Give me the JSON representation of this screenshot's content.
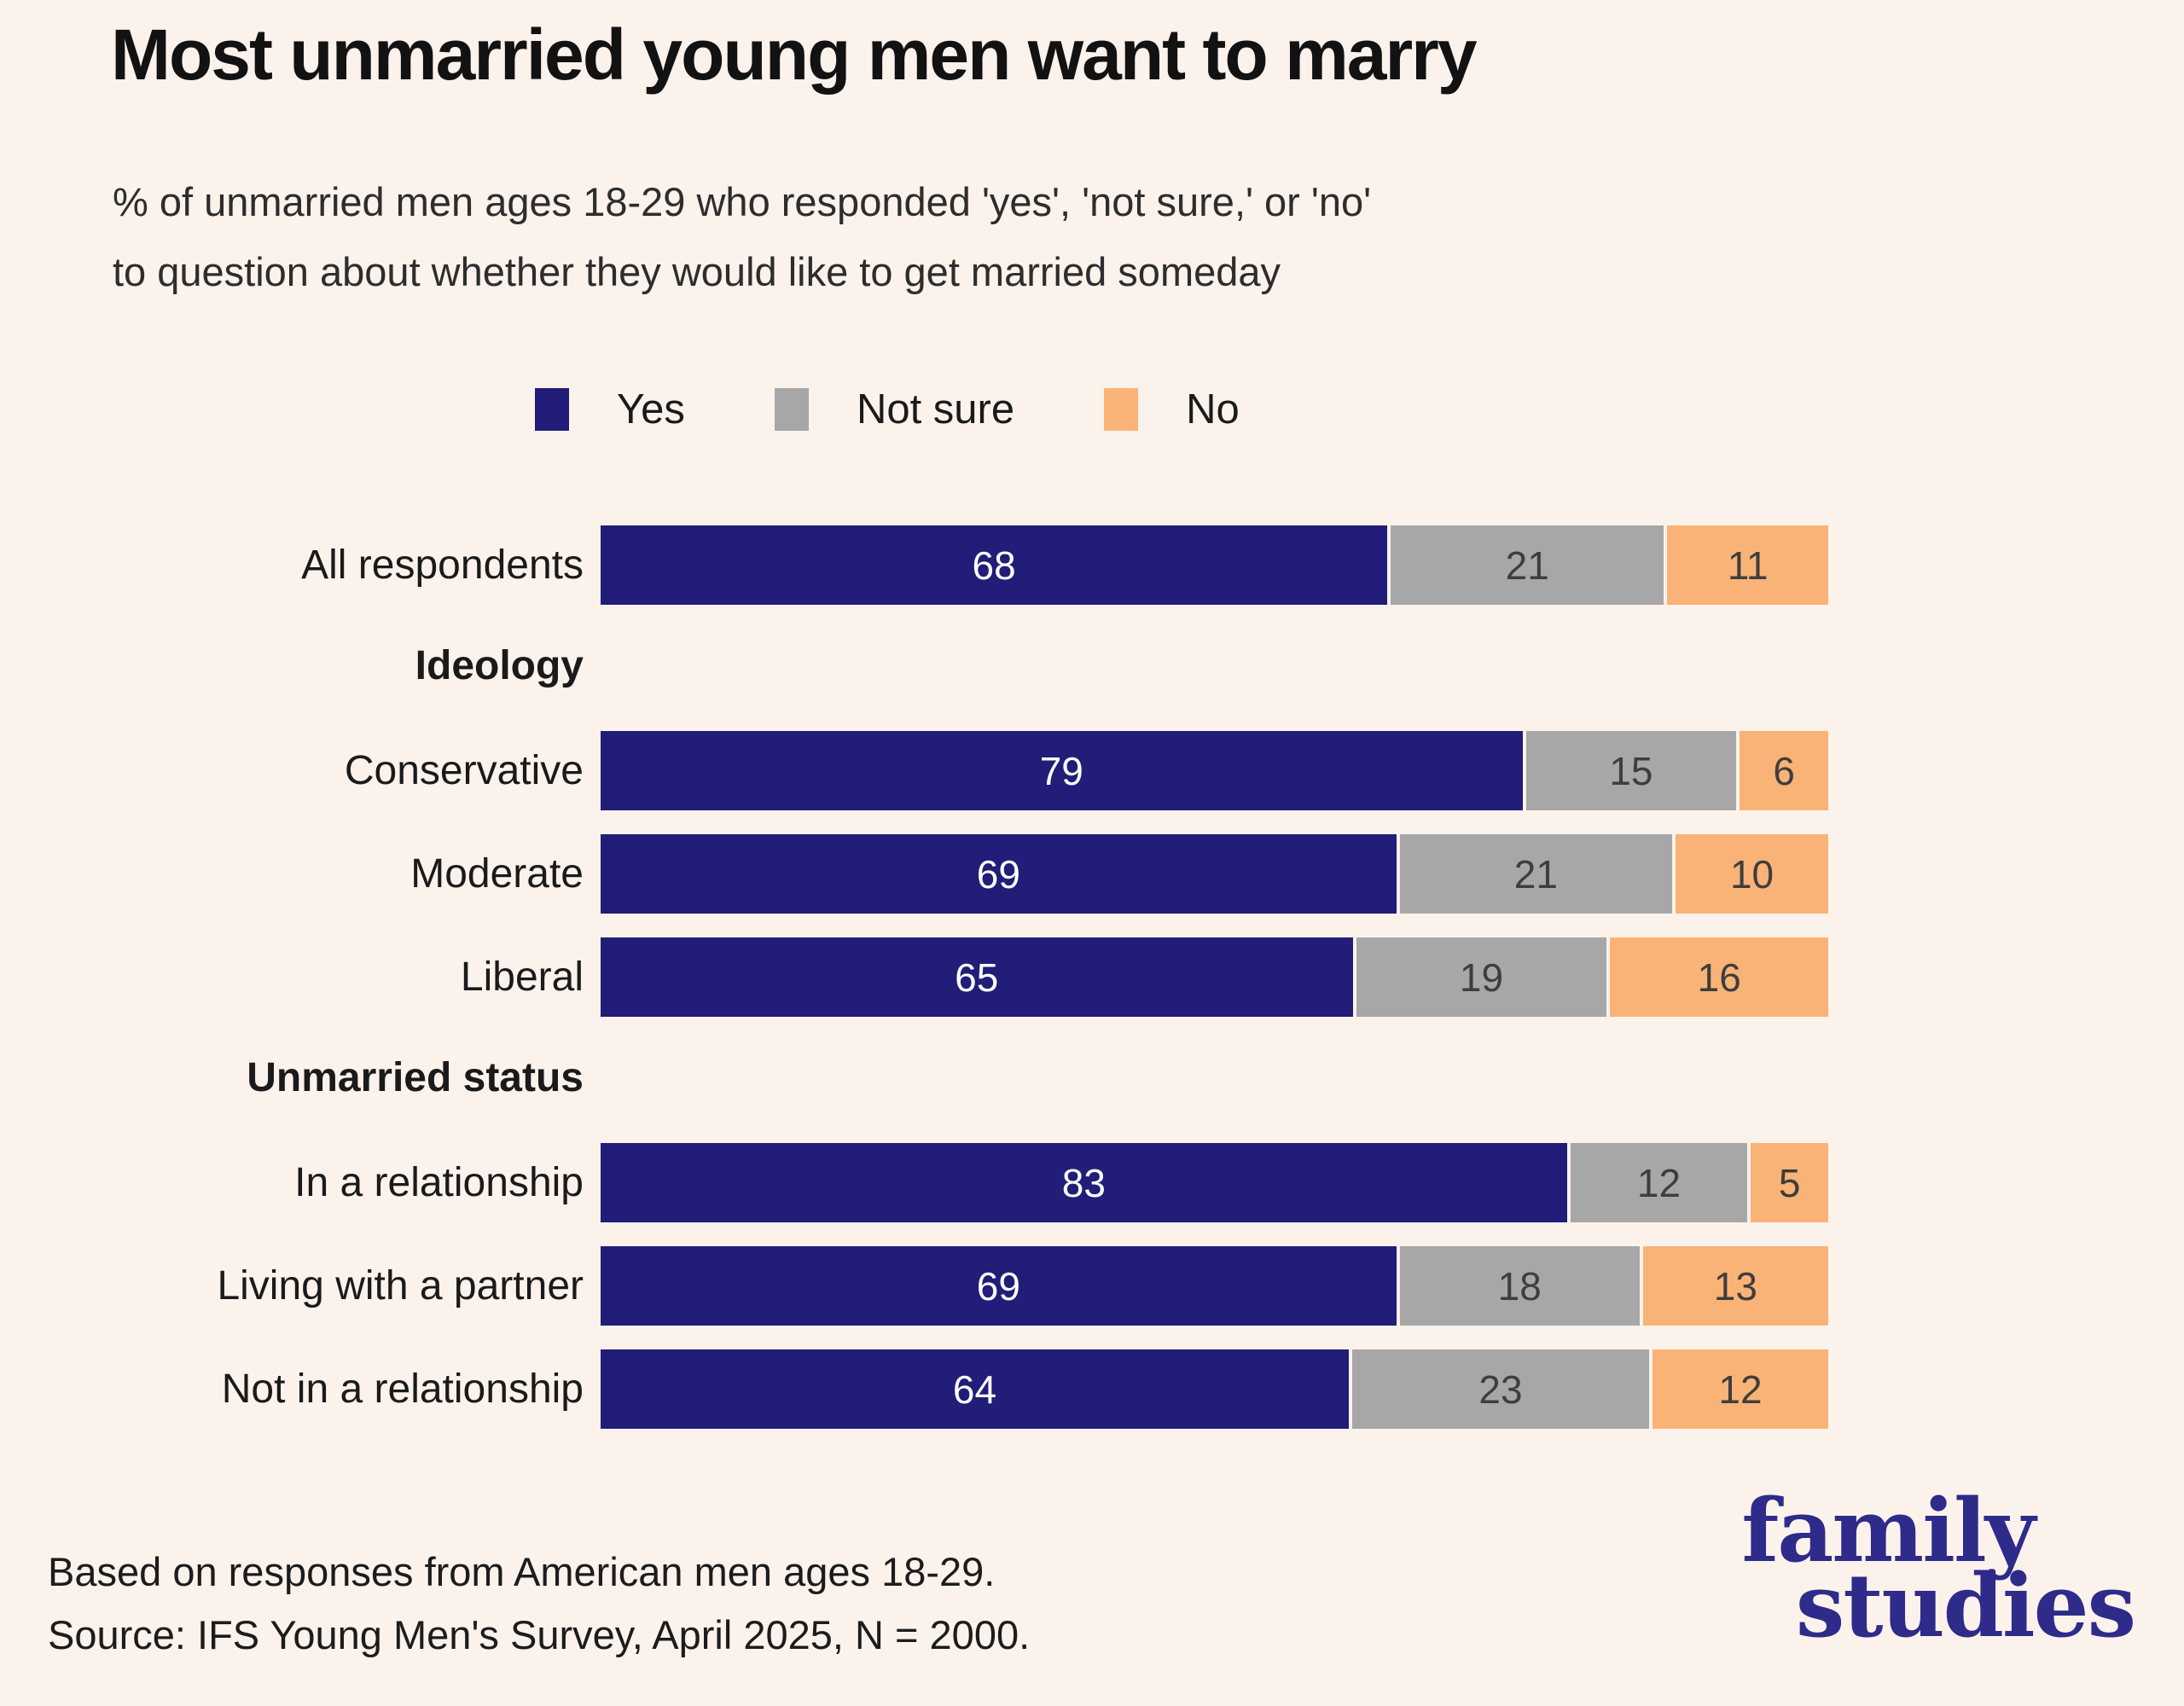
{
  "title": "Most unmarried young men want to marry",
  "subtitle": {
    "line1": "% of unmarried men ages 18-29 who responded 'yes', 'not sure,' or 'no'",
    "line2": "to question about whether they would like to get married someday"
  },
  "legend": [
    {
      "label": "Yes",
      "color": "#211d78"
    },
    {
      "label": "Not sure",
      "color": "#a7a7a7"
    },
    {
      "label": "No",
      "color": "#fab377"
    }
  ],
  "chart_data": {
    "type": "bar",
    "orientation": "horizontal",
    "stacked": true,
    "unit": "percent",
    "xlim": [
      0,
      100
    ],
    "series_names": [
      "Yes",
      "Not sure",
      "No"
    ],
    "series_colors": [
      "#211d78",
      "#a7a7a7",
      "#fab377"
    ],
    "groups": [
      {
        "header": "",
        "rows": [
          {
            "label": "All respondents",
            "values": [
              68,
              21,
              11
            ]
          }
        ]
      },
      {
        "header": "Ideology",
        "rows": [
          {
            "label": "Conservative",
            "values": [
              79,
              15,
              6
            ]
          },
          {
            "label": "Moderate",
            "values": [
              69,
              21,
              10
            ]
          },
          {
            "label": "Liberal",
            "values": [
              65,
              19,
              16
            ]
          }
        ]
      },
      {
        "header": "Unmarried status",
        "rows": [
          {
            "label": "In a relationship",
            "values": [
              83,
              12,
              5
            ]
          },
          {
            "label": "Living with a partner",
            "values": [
              69,
              18,
              13
            ]
          },
          {
            "label": "Not in a relationship",
            "values": [
              64,
              23,
              12
            ]
          }
        ]
      }
    ]
  },
  "footer": {
    "line1": "Based on responses from American men ages 18-29.",
    "line2": "Source: IFS Young Men's Survey, April 2025, N = 2000."
  },
  "logo": {
    "line1": "family",
    "line2": "studies"
  },
  "colors": {
    "background": "#fcf2ec",
    "yes": "#211d78",
    "not_sure": "#a7a7a7",
    "no": "#fab377",
    "value_on_light": "#3e3e3e",
    "value_on_dark": "#ffffff",
    "logo": "#2e2b8a"
  }
}
